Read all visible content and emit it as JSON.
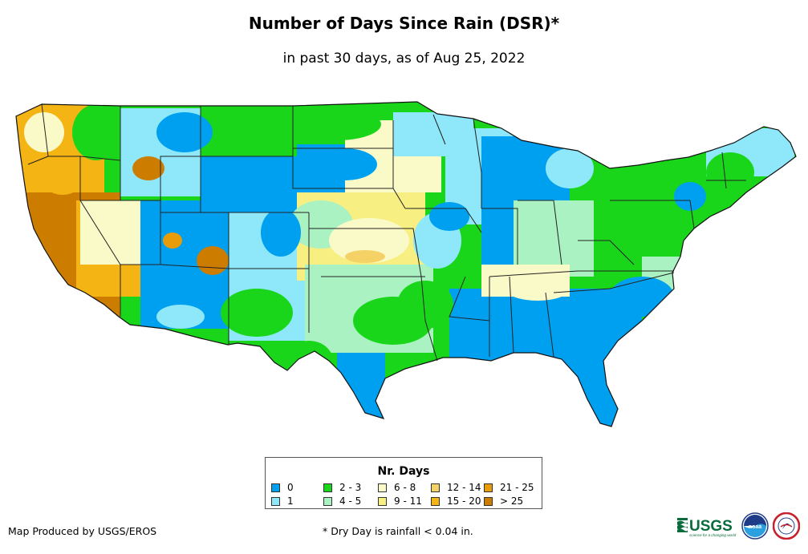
{
  "header": {
    "title": "Number of Days Since Rain (DSR)*",
    "subtitle": "in past 30 days, as of Aug 25, 2022"
  },
  "legend": {
    "title": "Nr. Days",
    "items": [
      {
        "label": "0",
        "color": "#00a0f0"
      },
      {
        "label": "1",
        "color": "#8ee8fa"
      },
      {
        "label": "2 - 3",
        "color": "#1ad61a"
      },
      {
        "label": "4 - 5",
        "color": "#aaf2c2"
      },
      {
        "label": "6 - 8",
        "color": "#fafac8"
      },
      {
        "label": "9 - 11",
        "color": "#f7ef82"
      },
      {
        "label": "12 - 14",
        "color": "#f5d266"
      },
      {
        "label": "15 - 20",
        "color": "#f4b414"
      },
      {
        "label": "21 - 25",
        "color": "#e89c0a"
      },
      {
        "label": "> 25",
        "color": "#cc7d00"
      }
    ]
  },
  "footer": {
    "producer": "Map Produced by USGS/EROS",
    "footnote": "* Dry Day is rainfall < 0.04 in.",
    "logos": [
      {
        "icon": "usgs-logo",
        "text": "USGS",
        "tagline": "science for a changing world"
      },
      {
        "icon": "noaa-logo",
        "text": "noaa"
      },
      {
        "icon": "nws-logo"
      }
    ]
  }
}
